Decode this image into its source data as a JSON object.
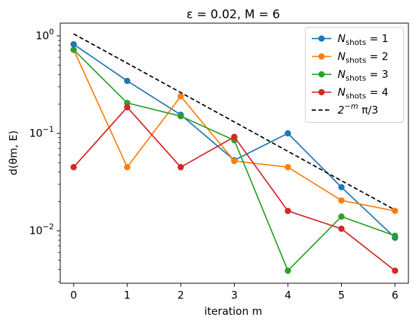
{
  "chart_data": {
    "type": "line",
    "title": "ε = 0.02,  M = 6",
    "xlabel": "iteration m",
    "ylabel": "d(θm, E)",
    "yscale": "log",
    "xlim": [
      -0.25,
      6.25
    ],
    "ylim": [
      0.0029,
      1.35
    ],
    "xticks": [
      0,
      1,
      2,
      3,
      4,
      5,
      6
    ],
    "yticks": [
      {
        "value": 1,
        "base": "10",
        "exp": "0"
      },
      {
        "value": 0.1,
        "base": "10",
        "exp": "−1"
      },
      {
        "value": 0.01,
        "base": "10",
        "exp": "−2"
      }
    ],
    "grid": false,
    "legend_position": "top-right",
    "x": [
      0,
      1,
      2,
      3,
      4,
      5,
      6
    ],
    "series": [
      {
        "name": "N_shots = 1",
        "name_main": "N",
        "name_sub": "shots",
        "name_rest": " = 1",
        "color": "#1f77b4",
        "style": "solid-marker",
        "values": [
          0.82,
          0.345,
          0.155,
          0.053,
          0.1,
          0.028,
          0.0085
        ]
      },
      {
        "name": "N_shots = 2",
        "name_main": "N",
        "name_sub": "shots",
        "name_rest": " = 2",
        "color": "#ff7f0e",
        "style": "solid-marker",
        "values": [
          0.72,
          0.045,
          0.24,
          0.052,
          0.045,
          0.0205,
          0.016
        ]
      },
      {
        "name": "N_shots = 3",
        "name_main": "N",
        "name_sub": "shots",
        "name_rest": " = 3",
        "color": "#2ca02c",
        "style": "solid-marker",
        "values": [
          0.72,
          0.205,
          0.15,
          0.085,
          0.0039,
          0.014,
          0.0089
        ]
      },
      {
        "name": "N_shots = 4",
        "name_main": "N",
        "name_sub": "shots",
        "name_rest": " = 4",
        "color": "#d62728",
        "style": "solid-marker",
        "values": [
          0.045,
          0.185,
          0.045,
          0.092,
          0.016,
          0.0105,
          0.0039
        ]
      },
      {
        "name": "2^−m π/3",
        "name_main": "2",
        "name_sup": "−m",
        "name_rest": " π/3",
        "color": "#000000",
        "style": "dashed",
        "values": [
          1.047,
          0.524,
          0.262,
          0.131,
          0.0654,
          0.0327,
          0.0164
        ]
      }
    ]
  }
}
